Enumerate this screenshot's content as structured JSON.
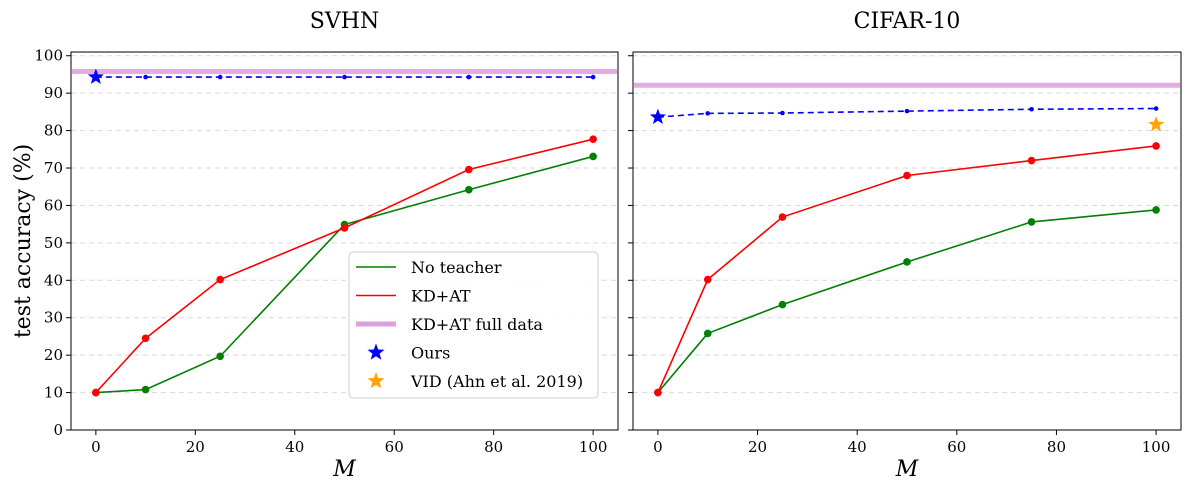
{
  "chart_data": [
    {
      "type": "line",
      "title": "SVHN",
      "xlabel": "M",
      "ylabel": "test accuracy (%)",
      "xlim": [
        -5,
        105
      ],
      "ylim": [
        0,
        101
      ],
      "xticks": [
        0,
        20,
        40,
        60,
        80,
        100
      ],
      "yticks": [
        0,
        10,
        20,
        30,
        40,
        50,
        60,
        70,
        80,
        90,
        100
      ],
      "grid": "horizontal dashed",
      "legend_position": "lower-right",
      "series": [
        {
          "name": "No teacher",
          "color": "#008000",
          "x": [
            0,
            10,
            25,
            50,
            75,
            100
          ],
          "y": [
            10.0,
            10.8,
            19.7,
            54.9,
            64.2,
            73.1
          ]
        },
        {
          "name": "KD+AT",
          "color": "#ff0000",
          "x": [
            0,
            10,
            25,
            50,
            75,
            100
          ],
          "y": [
            10.0,
            24.5,
            40.2,
            54.0,
            69.6,
            77.7
          ]
        },
        {
          "name": "Ours",
          "color": "#0000ff",
          "style": "dashed",
          "x": [
            0,
            10,
            25,
            50,
            75,
            100
          ],
          "y": [
            94.3,
            94.3,
            94.3,
            94.3,
            94.3,
            94.3
          ]
        }
      ],
      "reference_line": {
        "name": "KD+AT full data",
        "color": "#dda0dd",
        "y": 95.8
      },
      "star_markers": [
        {
          "series": "Ours",
          "color": "#0000ff",
          "x": 0,
          "y": 94.3
        }
      ]
    },
    {
      "type": "line",
      "title": "CIFAR-10",
      "xlabel": "M",
      "xlim": [
        -5,
        105
      ],
      "ylim": [
        0,
        101
      ],
      "xticks": [
        0,
        20,
        40,
        60,
        80,
        100
      ],
      "yticks": [
        0,
        10,
        20,
        30,
        40,
        50,
        60,
        70,
        80,
        90,
        100
      ],
      "grid": "horizontal dashed",
      "series": [
        {
          "name": "No teacher",
          "color": "#008000",
          "x": [
            0,
            10,
            25,
            50,
            75,
            100
          ],
          "y": [
            10.0,
            25.8,
            33.5,
            44.9,
            55.6,
            58.8
          ]
        },
        {
          "name": "KD+AT",
          "color": "#ff0000",
          "x": [
            0,
            10,
            25,
            50,
            75,
            100
          ],
          "y": [
            10.0,
            40.2,
            56.9,
            68.0,
            72.0,
            75.9
          ]
        },
        {
          "name": "Ours",
          "color": "#0000ff",
          "style": "dashed",
          "x": [
            0,
            10,
            25,
            50,
            75,
            100
          ],
          "y": [
            83.6,
            84.6,
            84.7,
            85.2,
            85.7,
            85.9
          ]
        }
      ],
      "reference_line": {
        "name": "KD+AT full data",
        "color": "#dda0dd",
        "y": 92.1
      },
      "star_markers": [
        {
          "series": "Ours",
          "color": "#0000ff",
          "x": 0,
          "y": 83.6
        },
        {
          "series": "VID (Ahn et al. 2019)",
          "color": "#ffa500",
          "x": 100,
          "y": 81.6
        }
      ]
    }
  ],
  "legend": [
    {
      "label": "No teacher",
      "kind": "line",
      "color": "#008000"
    },
    {
      "label": "KD+AT",
      "kind": "line",
      "color": "#ff0000"
    },
    {
      "label": "KD+AT full data",
      "kind": "band",
      "color": "#dda0dd"
    },
    {
      "label": "Ours",
      "kind": "star",
      "color": "#0000ff"
    },
    {
      "label": "VID (Ahn et al. 2019)",
      "kind": "star",
      "color": "#ffa500"
    }
  ]
}
